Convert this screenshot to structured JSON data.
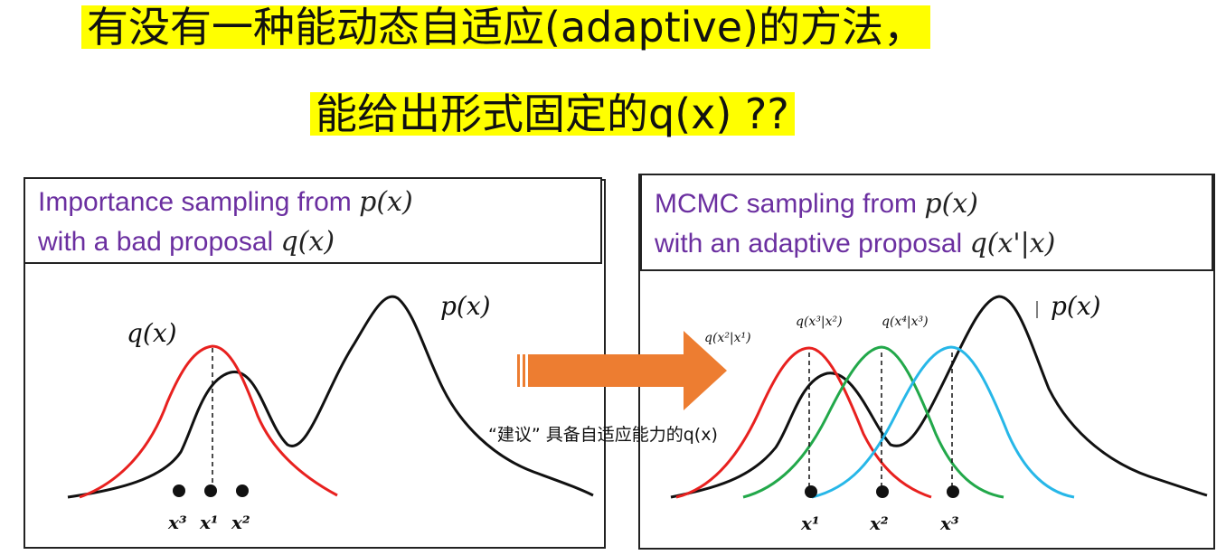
{
  "title": {
    "line1": "有没有一种能动态自适应(adaptive)的方法，",
    "line2": "能给出形式固定的q(x) ??"
  },
  "left_panel": {
    "heading_line1_text": "Importance sampling from ",
    "heading_line1_math": "p(x)",
    "heading_line2_text": "with a bad proposal ",
    "heading_line2_math": "q(x)",
    "curve_label_p": "p(x)",
    "curve_label_q": "q(x)",
    "samples": [
      "x³",
      "x¹",
      "x²"
    ]
  },
  "right_panel": {
    "heading_line1_text": "MCMC sampling from ",
    "heading_line1_math": "p(x)",
    "heading_line2_text": "with an adaptive proposal ",
    "heading_line2_math": "q(x'|x)",
    "curve_label_p": "p(x)",
    "proposal_labels": [
      "q(x²|x¹)",
      "q(x³|x²)",
      "q(x⁴|x³)"
    ],
    "samples": [
      "x¹",
      "x²",
      "x³"
    ]
  },
  "arrow_note": "“建议”    具备自适应能力的q(x)",
  "colors": {
    "highlight": "#ffff00",
    "heading_text": "#6b2fa0",
    "q_red": "#e8211f",
    "q_green": "#22a84a",
    "q_blue": "#27b7e8",
    "arrow_orange": "#ed7d31"
  }
}
